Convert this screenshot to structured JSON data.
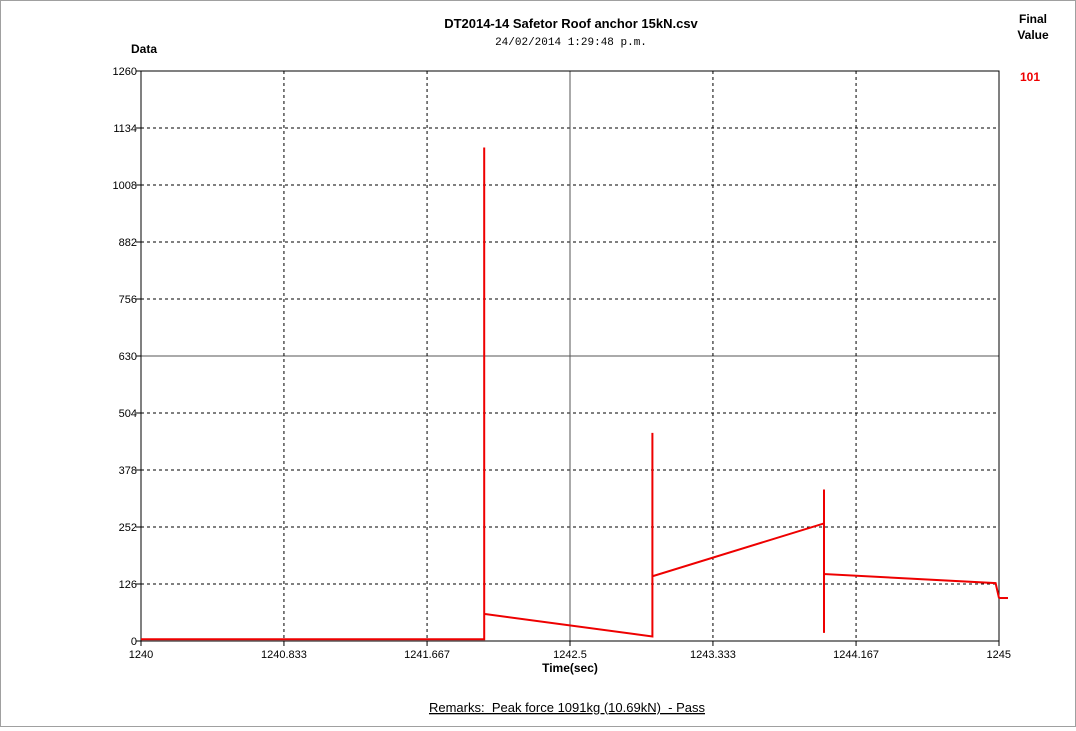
{
  "chart_data": {
    "type": "line",
    "title": "DT2014-14 Safetor Roof anchor 15kN.csv",
    "subtitle": "24/02/2014 1:29:48 p.m.",
    "ylabel": "Data",
    "xlabel": "Time(sec)",
    "final_value_label": [
      "Final",
      "Value"
    ],
    "final_value": "101",
    "remarks": "Remarks:  Peak force 1091kg (10.69kN)  - Pass",
    "xlim": [
      1240,
      1245
    ],
    "ylim": [
      0,
      1260
    ],
    "x_ticks": [
      {
        "value": 1240,
        "label": "1240"
      },
      {
        "value": 1240.833,
        "label": "1240.833"
      },
      {
        "value": 1241.667,
        "label": "1241.667"
      },
      {
        "value": 1242.5,
        "label": "1242.5"
      },
      {
        "value": 1243.333,
        "label": "1243.333"
      },
      {
        "value": 1244.167,
        "label": "1244.167"
      },
      {
        "value": 1245,
        "label": "1245"
      }
    ],
    "y_ticks": [
      0,
      126,
      252,
      378,
      504,
      630,
      756,
      882,
      1008,
      1134,
      1260
    ],
    "grid": true,
    "series_color": "#ee0000",
    "series": [
      {
        "x": [
          1240,
          1242.0,
          1242.0,
          1242.0,
          1242.0,
          1242.98,
          1242.98,
          1242.98,
          1242.98,
          1243.98,
          1243.98,
          1243.98,
          1243.98,
          1244.98,
          1245.0
        ],
        "y": [
          4,
          4,
          1091,
          4,
          60,
          10,
          460,
          10,
          143,
          260,
          335,
          18,
          148,
          128,
          95
        ]
      }
    ]
  }
}
